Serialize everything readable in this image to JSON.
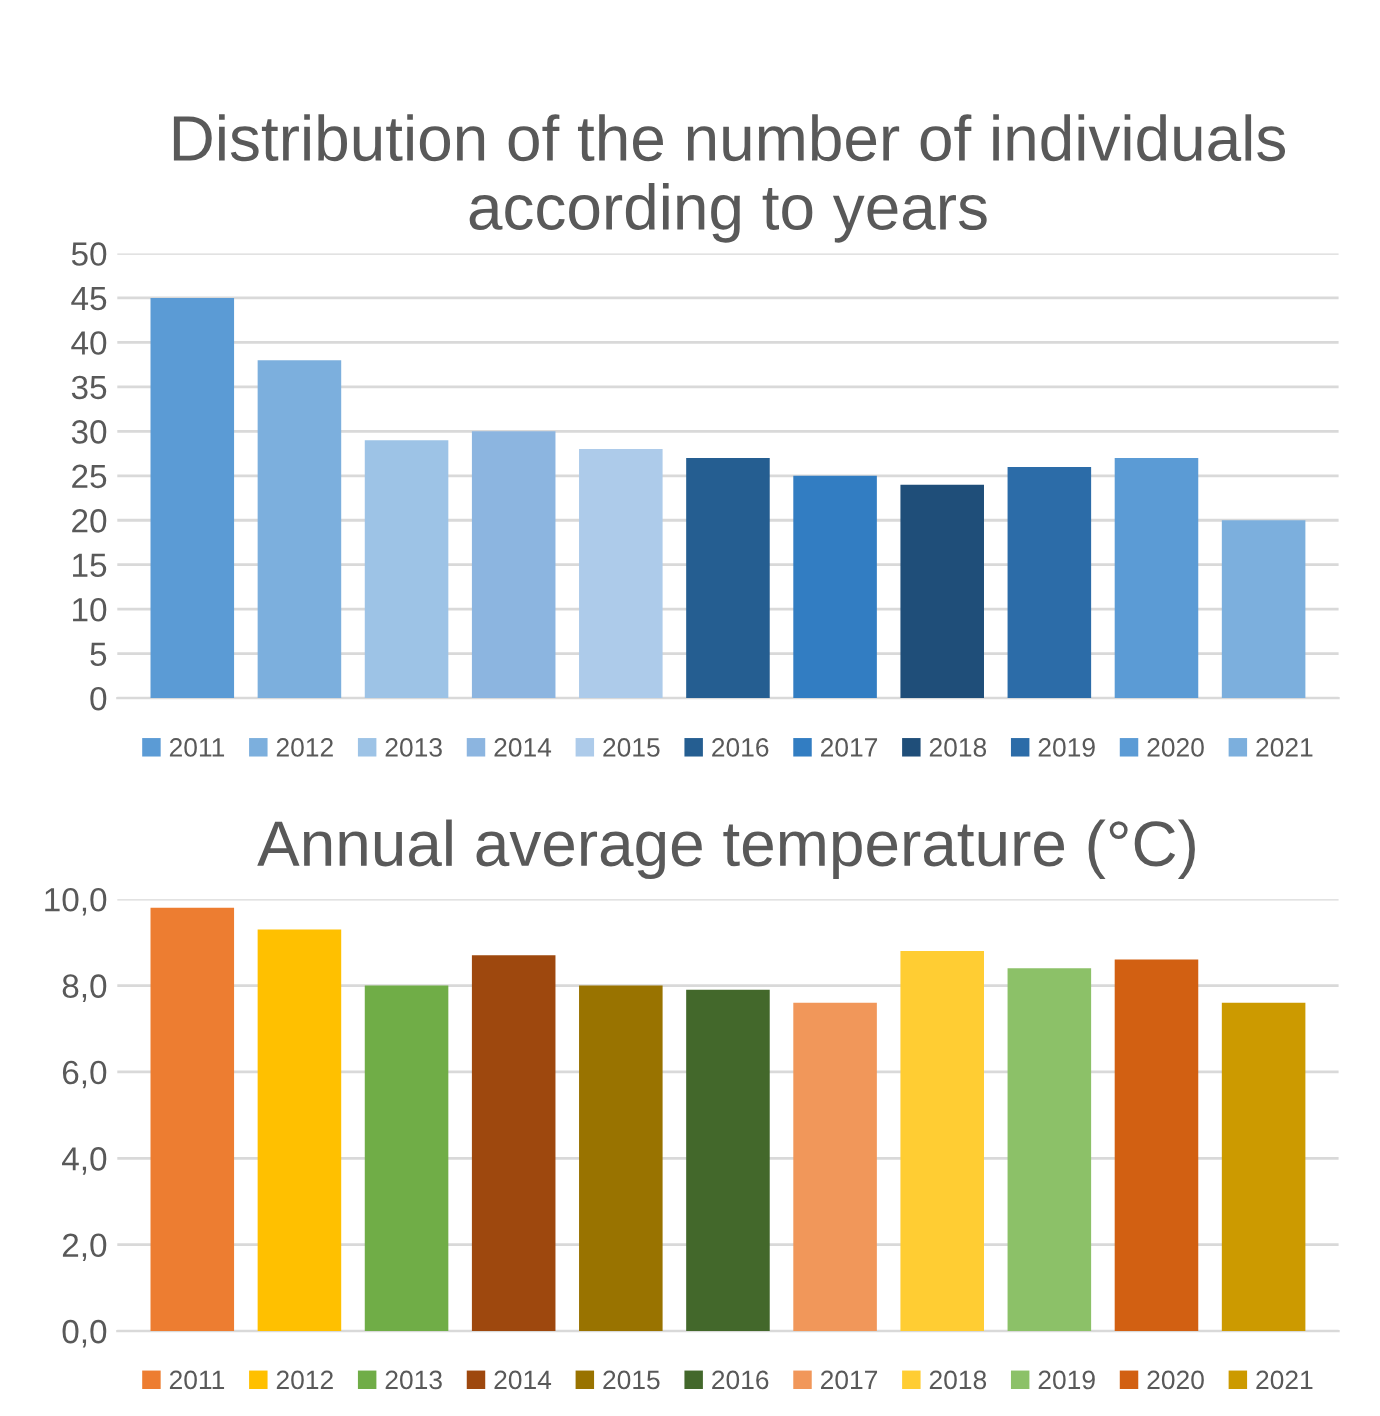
{
  "chart_data": [
    {
      "type": "bar",
      "title": "Distribution of the number of individuals according to years",
      "categories": [
        null,
        null,
        null,
        null,
        null,
        null,
        null,
        null,
        null,
        null,
        null
      ],
      "series": [
        {
          "name": "2011",
          "color": "#5b9bd5",
          "values": [
            45,
            null,
            null,
            null,
            null,
            null,
            null,
            null,
            null,
            null,
            null
          ]
        },
        {
          "name": "2012",
          "color": "#7cafdd",
          "values": [
            null,
            38,
            null,
            null,
            null,
            null,
            null,
            null,
            null,
            null,
            null
          ]
        },
        {
          "name": "2013",
          "color": "#9dc3e6",
          "values": [
            null,
            null,
            29,
            null,
            null,
            null,
            null,
            null,
            null,
            null,
            null
          ]
        },
        {
          "name": "2014",
          "color": "#8cb5e0",
          "values": [
            null,
            null,
            null,
            30,
            null,
            null,
            null,
            null,
            null,
            null,
            null
          ]
        },
        {
          "name": "2015",
          "color": "#adcbea",
          "values": [
            null,
            null,
            null,
            null,
            28,
            null,
            null,
            null,
            null,
            null,
            null
          ]
        },
        {
          "name": "2016",
          "color": "#255e91",
          "values": [
            null,
            null,
            null,
            null,
            null,
            27,
            null,
            null,
            null,
            null,
            null
          ]
        },
        {
          "name": "2017",
          "color": "#327dc2",
          "values": [
            null,
            null,
            null,
            null,
            null,
            null,
            25,
            null,
            null,
            null,
            null
          ]
        },
        {
          "name": "2018",
          "color": "#1f4e79",
          "values": [
            null,
            null,
            null,
            null,
            null,
            null,
            null,
            24,
            null,
            null,
            null
          ]
        },
        {
          "name": "2019",
          "color": "#2c6ca8",
          "values": [
            null,
            null,
            null,
            null,
            null,
            null,
            null,
            null,
            26,
            null,
            null
          ]
        },
        {
          "name": "2020",
          "color": "#5b9bd5",
          "values": [
            null,
            null,
            null,
            null,
            null,
            null,
            null,
            null,
            null,
            27,
            null
          ]
        },
        {
          "name": "2021",
          "color": "#7cafdd",
          "values": [
            null,
            null,
            null,
            null,
            null,
            null,
            null,
            null,
            null,
            null,
            20
          ]
        }
      ],
      "ylim": [
        0,
        50
      ],
      "yticks": [
        0,
        5,
        10,
        15,
        20,
        25,
        30,
        35,
        40,
        45,
        50
      ],
      "grid": "y",
      "legend": "bottom"
    },
    {
      "type": "bar",
      "title": "Annual average temperature (°C)",
      "categories": [
        null,
        null,
        null,
        null,
        null,
        null,
        null,
        null,
        null,
        null,
        null
      ],
      "series": [
        {
          "name": "2011",
          "color": "#ed7d31",
          "values": [
            9.8,
            null,
            null,
            null,
            null,
            null,
            null,
            null,
            null,
            null,
            null
          ]
        },
        {
          "name": "2012",
          "color": "#ffc000",
          "values": [
            null,
            9.3,
            null,
            null,
            null,
            null,
            null,
            null,
            null,
            null,
            null
          ]
        },
        {
          "name": "2013",
          "color": "#70ad47",
          "values": [
            null,
            null,
            8.0,
            null,
            null,
            null,
            null,
            null,
            null,
            null,
            null
          ]
        },
        {
          "name": "2014",
          "color": "#9e480e",
          "values": [
            null,
            null,
            null,
            8.7,
            null,
            null,
            null,
            null,
            null,
            null,
            null
          ]
        },
        {
          "name": "2015",
          "color": "#997300",
          "values": [
            null,
            null,
            null,
            null,
            8.0,
            null,
            null,
            null,
            null,
            null,
            null
          ]
        },
        {
          "name": "2016",
          "color": "#43682b",
          "values": [
            null,
            null,
            null,
            null,
            null,
            7.9,
            null,
            null,
            null,
            null,
            null
          ]
        },
        {
          "name": "2017",
          "color": "#f1975a",
          "values": [
            null,
            null,
            null,
            null,
            null,
            null,
            7.6,
            null,
            null,
            null,
            null
          ]
        },
        {
          "name": "2018",
          "color": "#ffcd33",
          "values": [
            null,
            null,
            null,
            null,
            null,
            null,
            null,
            8.8,
            null,
            null,
            null
          ]
        },
        {
          "name": "2019",
          "color": "#8cc168",
          "values": [
            null,
            null,
            null,
            null,
            null,
            null,
            null,
            null,
            8.4,
            null,
            null
          ]
        },
        {
          "name": "2020",
          "color": "#d26012",
          "values": [
            null,
            null,
            null,
            null,
            null,
            null,
            null,
            null,
            null,
            8.6,
            null
          ]
        },
        {
          "name": "2021",
          "color": "#cc9a00",
          "values": [
            null,
            null,
            null,
            null,
            null,
            null,
            null,
            null,
            null,
            null,
            7.6
          ]
        }
      ],
      "ylim": [
        0,
        10
      ],
      "yticks": [
        {
          "value": 0,
          "label": "0,0"
        },
        {
          "value": 2,
          "label": "2,0"
        },
        {
          "value": 4,
          "label": "4,0"
        },
        {
          "value": 6,
          "label": "6,0"
        },
        {
          "value": 8,
          "label": "8,0"
        },
        {
          "value": 10,
          "label": "10,0"
        }
      ],
      "grid": "y",
      "legend": "bottom"
    }
  ]
}
